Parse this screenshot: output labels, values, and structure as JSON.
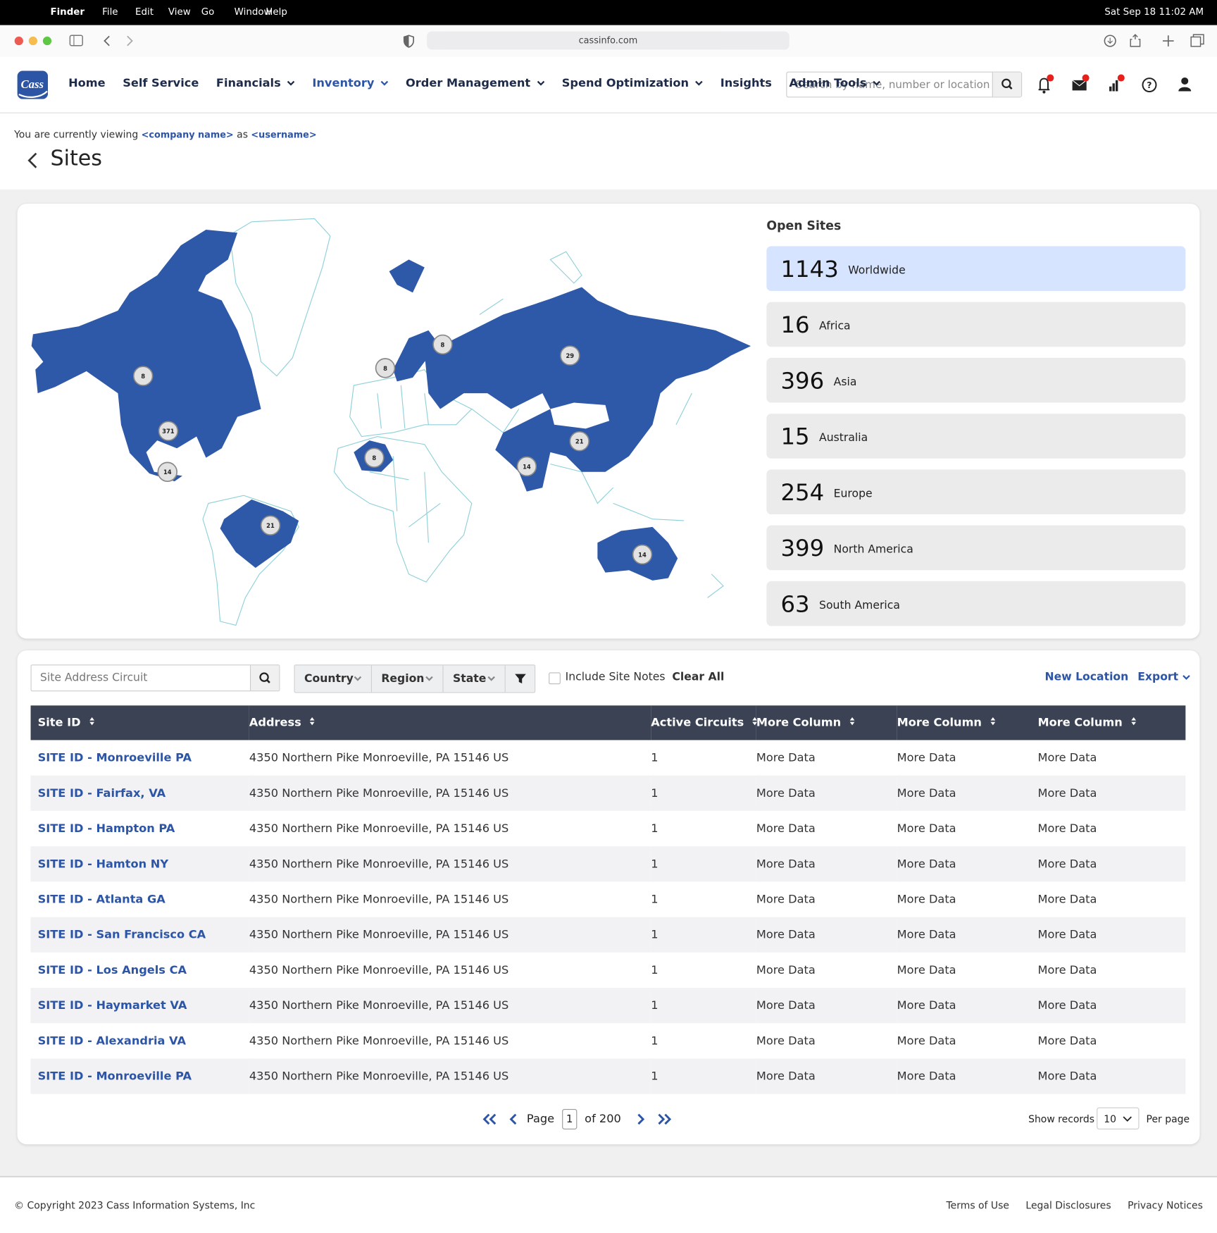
{
  "menubar": {
    "app": "Finder",
    "items": [
      "File",
      "Edit",
      "View",
      "Go",
      "Window",
      "Help"
    ],
    "clock": "Sat Sep 18  11:02 AM"
  },
  "browser": {
    "url": "cassinfo.com"
  },
  "nav": {
    "logo": "Cass",
    "items": [
      {
        "label": "Home",
        "dropdown": false,
        "active": false
      },
      {
        "label": "Self Service",
        "dropdown": false,
        "active": false
      },
      {
        "label": "Financials",
        "dropdown": true,
        "active": false
      },
      {
        "label": "Inventory",
        "dropdown": true,
        "active": true
      },
      {
        "label": "Order Management",
        "dropdown": true,
        "active": false
      },
      {
        "label": "Spend Optimization",
        "dropdown": true,
        "active": false
      },
      {
        "label": "Insights",
        "dropdown": false,
        "active": false
      },
      {
        "label": "Admin Tools",
        "dropdown": true,
        "active": false
      }
    ],
    "search_placeholder": "Search by name, number or location"
  },
  "context": {
    "prefix": "You are currently viewing",
    "company": "<company name>",
    "joiner": "as",
    "user": "<username>"
  },
  "page_title": "Sites",
  "map": {
    "markers": [
      8,
      371,
      14,
      21,
      8,
      8,
      29,
      21,
      14,
      8,
      14
    ]
  },
  "open_sites": {
    "title": "Open Sites",
    "regions": [
      {
        "count": 1143,
        "name": "Worldwide"
      },
      {
        "count": 16,
        "name": "Africa"
      },
      {
        "count": 396,
        "name": "Asia"
      },
      {
        "count": 15,
        "name": "Australia"
      },
      {
        "count": 254,
        "name": "Europe"
      },
      {
        "count": 399,
        "name": "North America"
      },
      {
        "count": 63,
        "name": "South America"
      }
    ]
  },
  "toolbar": {
    "search_placeholder": "Site Address Circuit",
    "filters": [
      "Country",
      "Region",
      "State"
    ],
    "checkbox": "Include Site Notes",
    "clear": "Clear All",
    "new_location": "New Location",
    "export": "Export"
  },
  "table": {
    "columns": [
      "Site ID",
      "Address",
      "Active Circuits",
      "More Column",
      "More Column",
      "More Column"
    ],
    "rows": [
      [
        "SITE ID - Monroeville PA",
        "4350 Northern Pike Monroeville, PA 15146 US",
        1,
        "More Data",
        "More Data",
        "More Data"
      ],
      [
        "SITE ID - Fairfax,  VA",
        "4350 Northern Pike Monroeville, PA 15146 US",
        1,
        "More Data",
        "More Data",
        "More Data"
      ],
      [
        "SITE ID - Hampton PA",
        "4350 Northern Pike Monroeville, PA 15146 US",
        1,
        "More Data",
        "More Data",
        "More Data"
      ],
      [
        "SITE ID - Hamton NY",
        "4350 Northern Pike Monroeville, PA 15146 US",
        1,
        "More Data",
        "More Data",
        "More Data"
      ],
      [
        "SITE ID - Atlanta GA",
        "4350 Northern Pike Monroeville, PA 15146 US",
        1,
        "More Data",
        "More Data",
        "More Data"
      ],
      [
        "SITE ID - San Francisco CA",
        "4350 Northern Pike Monroeville, PA 15146 US",
        1,
        "More Data",
        "More Data",
        "More Data"
      ],
      [
        "SITE ID - Los Angels CA",
        "4350 Northern Pike Monroeville, PA 15146 US",
        1,
        "More Data",
        "More Data",
        "More Data"
      ],
      [
        "SITE ID - Haymarket VA",
        "4350 Northern Pike Monroeville, PA 15146 US",
        1,
        "More Data",
        "More Data",
        "More Data"
      ],
      [
        "SITE ID - Alexandria VA",
        "4350 Northern Pike Monroeville, PA 15146 US",
        1,
        "More Data",
        "More Data",
        "More Data"
      ],
      [
        "SITE ID - Monroeville PA",
        "4350 Northern Pike Monroeville, PA 15146 US",
        1,
        "More Data",
        "More Data",
        "More Data"
      ]
    ]
  },
  "pagination": {
    "page_label": "Page",
    "current": 1,
    "total_label": "of 200",
    "show_records": "Show records",
    "per_page_value": 10,
    "per_page_label": "Per page"
  },
  "footer": {
    "copyright": "© Copyright 2023 Cass Information Systems, Inc",
    "links": [
      "Terms of Use",
      "Legal Disclosures",
      "Privacy Notices"
    ]
  }
}
